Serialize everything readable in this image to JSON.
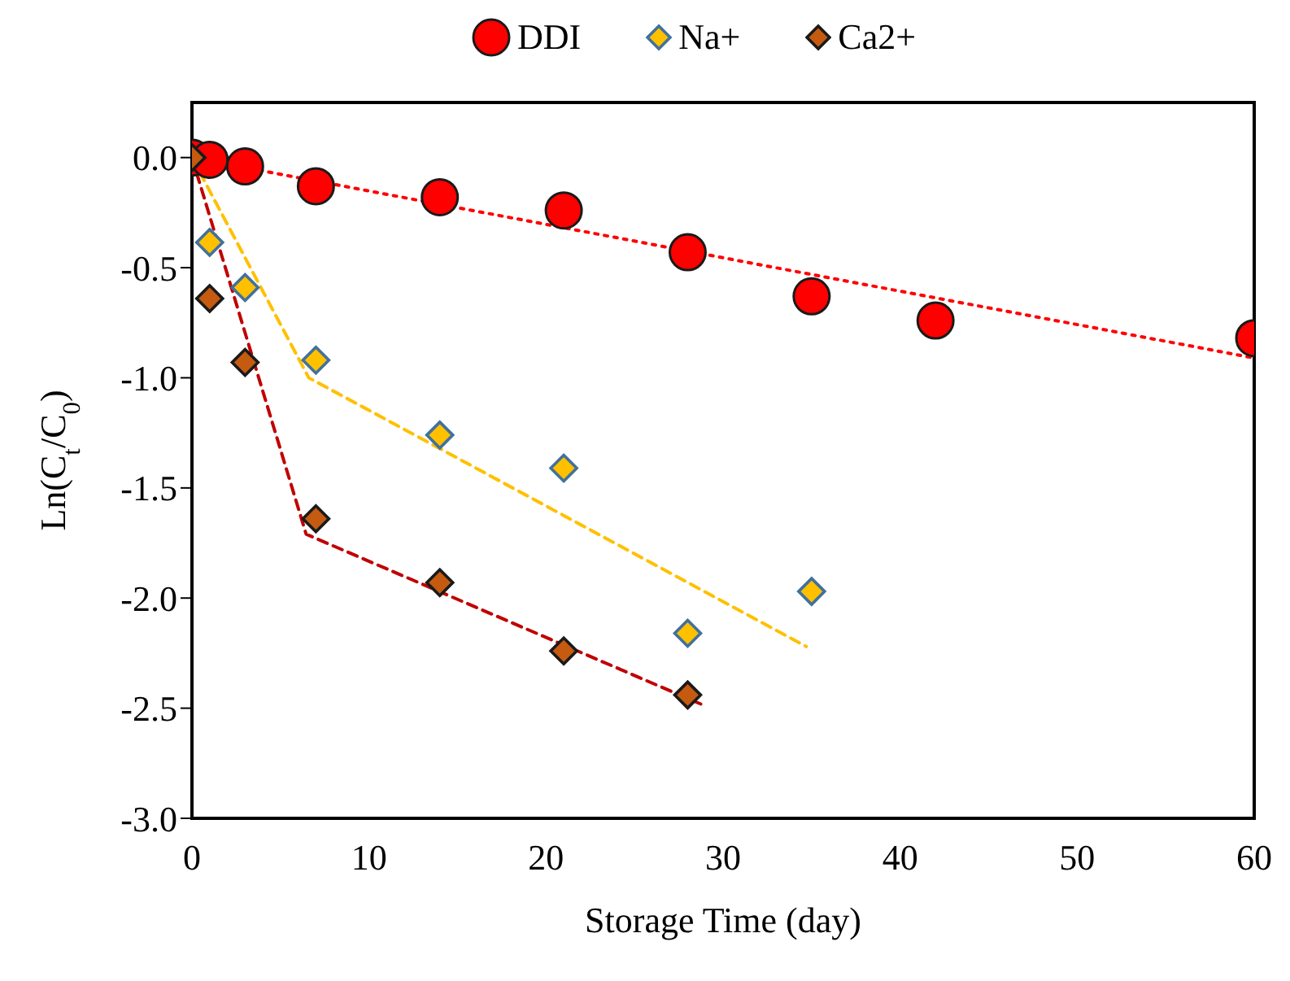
{
  "chart_data": {
    "type": "scatter",
    "xlabel": "Storage Time (day)",
    "ylabel": "Ln(C$_{t}$/C$_{0}$)",
    "xlim": [
      0,
      60
    ],
    "xticks": [
      0,
      10,
      20,
      30,
      40,
      50,
      60
    ],
    "ylim": [
      -3,
      0.25
    ],
    "yticks": [
      {
        "value": 0,
        "label": "0.0"
      },
      {
        "value": -0.5,
        "label": "-0.5"
      },
      {
        "value": -1,
        "label": "-1.0"
      },
      {
        "value": -1.5,
        "label": "-1.5"
      },
      {
        "value": -2,
        "label": "-2.0"
      },
      {
        "value": -2.5,
        "label": "-2.5"
      },
      {
        "value": -3,
        "label": "-3.0"
      }
    ],
    "grid": false,
    "legend": "top",
    "tick_labels": true,
    "series": [
      {
        "name": "DDI",
        "color": "#ff0000",
        "marker": "circle",
        "x": [
          0,
          1,
          3,
          7,
          14,
          21,
          28,
          35,
          42,
          60
        ],
        "values": [
          0,
          -0.01,
          -0.04,
          -0.13,
          -0.18,
          -0.24,
          -0.43,
          -0.63,
          -0.74,
          -0.82
        ]
      },
      {
        "name": "Na+",
        "color": "#ffc000",
        "marker": "diamond",
        "x": [
          1,
          3,
          7,
          14,
          21,
          28,
          35
        ],
        "values": [
          -0.385,
          -0.59,
          -0.92,
          -1.26,
          -1.41,
          -2.16,
          -1.97
        ]
      },
      {
        "name": "Ca2+",
        "color": "#c55a11",
        "marker": "diamond",
        "x": [
          0,
          1,
          3,
          7,
          14,
          21,
          28
        ],
        "values": [
          0,
          -0.64,
          -0.93,
          -1.64,
          -1.93,
          -2.24,
          -2.44
        ]
      },
      {
        "type": "line",
        "color": "#ff0000",
        "line_style": "dotted",
        "marker": "none",
        "x": [
          0,
          60
        ],
        "values": [
          0,
          -0.91
        ]
      },
      {
        "type": "line",
        "color": "#ffc000",
        "line_style": "dashed",
        "marker": "none",
        "x": [
          0,
          6.6,
          34.7
        ],
        "values": [
          0,
          -1.0,
          -2.22
        ]
      },
      {
        "type": "line",
        "color": "#c00000",
        "line_style": "dashed",
        "marker": "none",
        "x": [
          0,
          6.45,
          29
        ],
        "values": [
          0,
          -1.71,
          -2.49
        ]
      }
    ]
  }
}
